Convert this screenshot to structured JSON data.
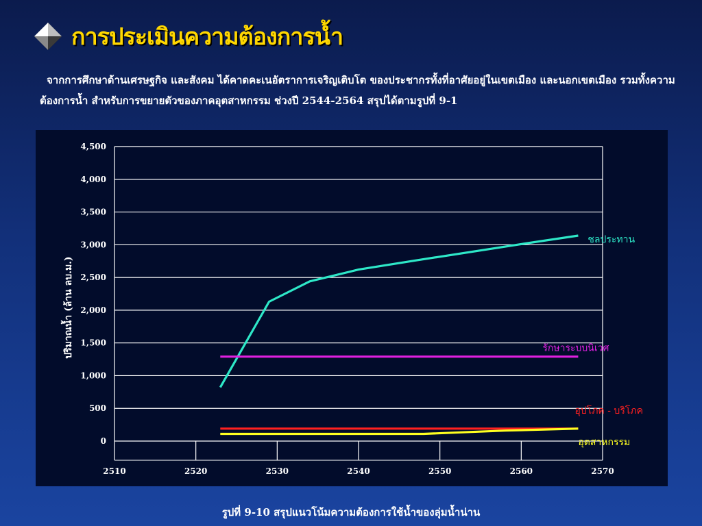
{
  "slide": {
    "title": "การประเมินความต้องการน้ำ",
    "intro": "จากการศึกษาด้านเศรษฐกิจ และสังคม ได้คาดคะเนอัตราการเจริญเติบโต ของประชากรทั้งที่อาศัยอยู่ในเขตเมือง และนอกเขตเมือง รวมทั้งความต้องการน้ำ สำหรับการขยายตัวของภาคอุตสาหกรรม ช่วงปี 2544-2564 สรุปได้ตามรูปที่ 9-1",
    "caption": "รูปที่ 9-10 สรุปแนวโน้มความต้องการใช้น้ำของลุ่มน้ำน่าน",
    "icon": "diamond-bullet-icon"
  },
  "chart_data": {
    "type": "line",
    "title": "",
    "xlabel": "",
    "ylabel": "ปริมาณน้ำ  (ล้าน ลบ.ม.)",
    "xlim": [
      2510,
      2570
    ],
    "ylim": [
      0,
      4500
    ],
    "x_ticks": [
      "2510",
      "2520",
      "2530",
      "2540",
      "2550",
      "2560",
      "2570"
    ],
    "y_ticks": [
      "0",
      "500",
      "1,000",
      "1,500",
      "2,000",
      "2,500",
      "3,000",
      "3,500",
      "4,000",
      "4,500"
    ],
    "grid": true,
    "series": [
      {
        "name": "ชลประทาน",
        "color": "#2ee8c8",
        "points": [
          [
            2523,
            820
          ],
          [
            2529,
            2130
          ],
          [
            2534,
            2440
          ],
          [
            2540,
            2620
          ],
          [
            2547,
            2760
          ],
          [
            2560,
            3010
          ],
          [
            2567,
            3140
          ]
        ]
      },
      {
        "name": "รักษาระบบนิเวศ",
        "color": "#e020e0",
        "points": [
          [
            2523,
            1290
          ],
          [
            2567,
            1290
          ]
        ]
      },
      {
        "name": "อุปโภค - บริโภค",
        "color": "#ff2020",
        "points": [
          [
            2523,
            190
          ],
          [
            2567,
            190
          ]
        ]
      },
      {
        "name": "อุตสาหกรรม",
        "color": "#ffff20",
        "points": [
          [
            2523,
            110
          ],
          [
            2548,
            110
          ],
          [
            2558,
            160
          ],
          [
            2567,
            190
          ]
        ]
      }
    ]
  }
}
